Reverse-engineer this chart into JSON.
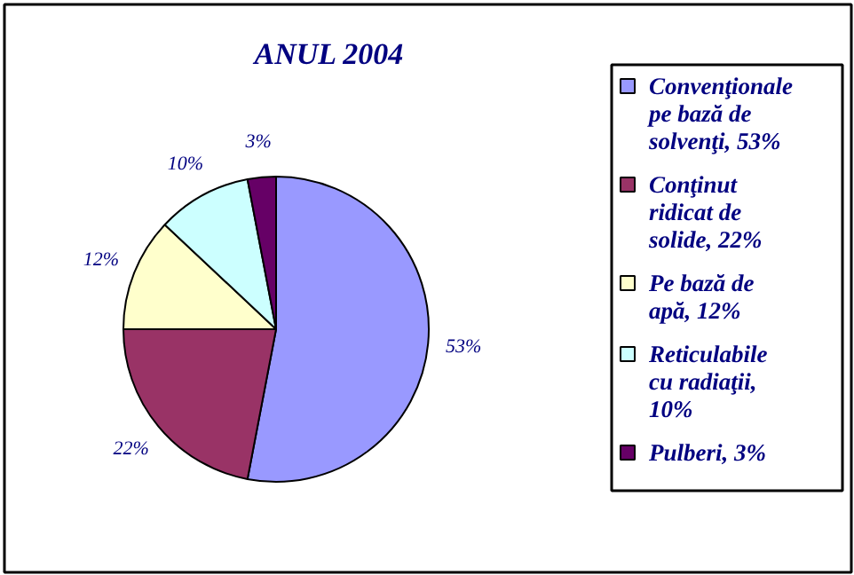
{
  "chart_data": {
    "type": "pie",
    "title": "ANUL 2004",
    "categories": [
      "Convenţionale pe bază de solvenţi, 53%",
      "Conţinut ridicat de solide, 22%",
      "Pe bază de apă, 12%",
      "Reticulabile cu radiaţii, 10%",
      "Pulberi, 3%"
    ],
    "values": [
      53,
      22,
      12,
      10,
      3
    ],
    "colors": [
      "#9999ff",
      "#993366",
      "#ffffcc",
      "#ccffff",
      "#660066"
    ],
    "value_labels": [
      "53%",
      "22%",
      "12%",
      "10%",
      "3%"
    ],
    "legend": "right"
  }
}
